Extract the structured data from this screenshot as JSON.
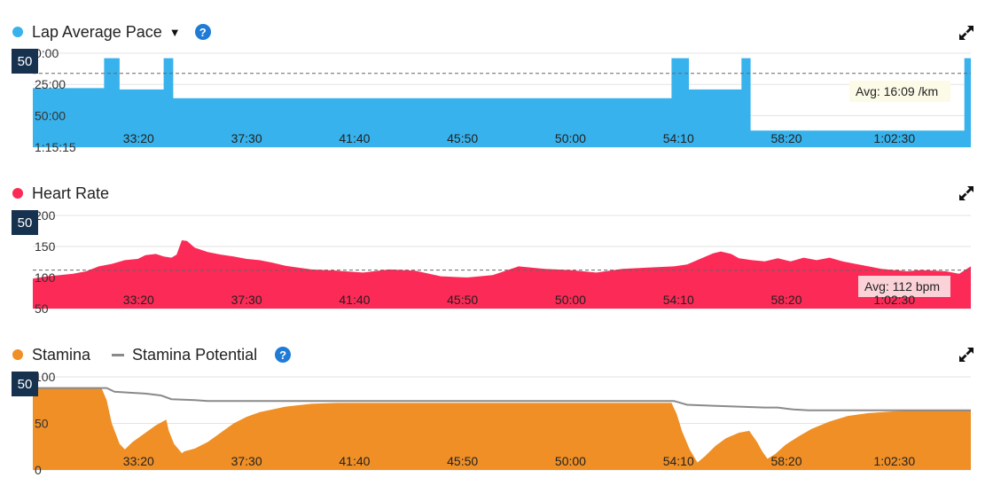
{
  "colors": {
    "pace": "#38b2ec",
    "heart": "#fb2a56",
    "stamina": "#ef8f26",
    "potential": "#8a8a8a",
    "help": "#1f7bd6",
    "badge": "#17324f"
  },
  "icons": {
    "help": "help-circle-icon",
    "expand": "expand-arrows-icon",
    "dropdown": "caret-down-icon"
  },
  "panels": [
    {
      "title": "Lap Average Pace",
      "badge": "50",
      "avg_label": "Avg: 16:09 /km",
      "help": "?",
      "caret": "▼"
    },
    {
      "title": "Heart Rate",
      "badge": "50",
      "avg_label": "Avg: 112 bpm"
    },
    {
      "title": "Stamina",
      "title2": "Stamina Potential",
      "badge": "50",
      "help": "?"
    }
  ],
  "chart_data": [
    {
      "type": "area",
      "title": "Lap Average Pace",
      "y_tick_labels": [
        "0:00",
        "25:00",
        "50:00",
        "1:15:15"
      ],
      "y_tick_values": [
        0,
        25,
        50,
        75.25
      ],
      "x_tick_labels": [
        "33:20",
        "37:30",
        "41:40",
        "45:50",
        "50:00",
        "54:10",
        "58:20",
        "1:02:30"
      ],
      "x_tick_minutes": [
        33.333,
        37.5,
        41.667,
        45.833,
        50.0,
        54.167,
        58.333,
        62.5
      ],
      "xlim_minutes": [
        29.25,
        65.45
      ],
      "ylim_minutes_per_km": [
        0,
        75.25
      ],
      "y_inverted": true,
      "average_minutes_per_km": 16.15,
      "series": [
        {
          "name": "Lap Average Pace",
          "x": [
            29.25,
            32.0,
            32.0,
            32.6,
            32.6,
            34.3,
            34.3,
            34.67,
            34.67,
            53.9,
            53.9,
            54.57,
            54.57,
            56.6,
            56.6,
            56.95,
            56.95,
            65.2,
            65.2,
            65.45
          ],
          "y": [
            28,
            28,
            4,
            4,
            29,
            29,
            4,
            4,
            36,
            36,
            4,
            4,
            29,
            29,
            4,
            4,
            62,
            62,
            4,
            4
          ]
        }
      ]
    },
    {
      "type": "area",
      "title": "Heart Rate",
      "y_tick_labels": [
        "200",
        "150",
        "100",
        "50"
      ],
      "y_tick_values": [
        200,
        150,
        100,
        50
      ],
      "x_tick_labels": [
        "33:20",
        "37:30",
        "41:40",
        "45:50",
        "50:00",
        "54:10",
        "58:20",
        "1:02:30"
      ],
      "x_tick_minutes": [
        33.333,
        37.5,
        41.667,
        45.833,
        50.0,
        54.167,
        58.333,
        62.5
      ],
      "xlim_minutes": [
        29.25,
        65.45
      ],
      "ylim": [
        50,
        200
      ],
      "average": 112,
      "series": [
        {
          "name": "Heart Rate",
          "x": [
            29.25,
            29.8,
            30.3,
            30.8,
            31.3,
            31.8,
            32.3,
            32.8,
            33.3,
            33.6,
            34.0,
            34.3,
            34.6,
            34.8,
            35.0,
            35.2,
            35.5,
            36.0,
            36.5,
            37.0,
            37.5,
            38.0,
            38.5,
            39.0,
            40.0,
            41.0,
            42.0,
            43.0,
            44.0,
            45.0,
            46.0,
            47.0,
            48.0,
            49.0,
            50.0,
            51.0,
            52.0,
            53.0,
            54.0,
            54.5,
            55.0,
            55.5,
            55.8,
            56.2,
            56.5,
            57.0,
            57.5,
            58.0,
            58.5,
            59.0,
            59.5,
            60.0,
            60.5,
            61.0,
            61.5,
            62.0,
            62.5,
            63.0,
            63.5,
            64.0,
            64.5,
            65.0,
            65.45
          ],
          "y": [
            98,
            102,
            104,
            106,
            110,
            118,
            122,
            128,
            130,
            136,
            138,
            134,
            132,
            137,
            160,
            159,
            148,
            141,
            137,
            134,
            130,
            128,
            124,
            119,
            113,
            111,
            108,
            113,
            111,
            102,
            100,
            104,
            118,
            114,
            112,
            108,
            114,
            116,
            118,
            121,
            130,
            139,
            142,
            138,
            131,
            128,
            126,
            131,
            126,
            132,
            128,
            132,
            126,
            122,
            118,
            114,
            112,
            110,
            112,
            111,
            110,
            106,
            118
          ]
        }
      ]
    },
    {
      "type": "area",
      "title": "Stamina",
      "y_tick_labels": [
        "100",
        "50",
        "0"
      ],
      "y_tick_values": [
        100,
        50,
        0
      ],
      "x_tick_labels": [
        "33:20",
        "37:30",
        "41:40",
        "45:50",
        "50:00",
        "54:10",
        "58:20",
        "1:02:30"
      ],
      "x_tick_minutes": [
        33.333,
        37.5,
        41.667,
        45.833,
        50.0,
        54.167,
        58.333,
        62.5
      ],
      "xlim_minutes": [
        29.25,
        65.45
      ],
      "ylim": [
        0,
        100
      ],
      "legend": [
        "Stamina",
        "Stamina Potential"
      ],
      "series": [
        {
          "name": "Stamina",
          "x": [
            29.25,
            31.9,
            32.1,
            32.3,
            32.6,
            32.8,
            33.1,
            33.5,
            34.0,
            34.4,
            34.5,
            34.7,
            35.0,
            35.1,
            35.5,
            36.0,
            36.5,
            37.0,
            37.5,
            38.0,
            39.0,
            40.0,
            41.0,
            42.0,
            43.0,
            50.0,
            53.0,
            53.9,
            54.1,
            54.3,
            54.6,
            54.9,
            55.2,
            55.6,
            56.0,
            56.5,
            56.9,
            57.0,
            57.2,
            57.4,
            57.6,
            57.9,
            58.3,
            58.8,
            59.3,
            60.0,
            60.7,
            61.5,
            62.5,
            63.5,
            65.45
          ],
          "y": [
            88,
            88,
            75,
            50,
            28,
            22,
            30,
            38,
            48,
            54,
            42,
            28,
            18,
            20,
            23,
            30,
            40,
            50,
            57,
            62,
            68,
            71,
            72,
            72,
            72,
            72,
            72,
            72,
            60,
            42,
            22,
            8,
            15,
            26,
            34,
            40,
            42,
            38,
            30,
            20,
            12,
            17,
            27,
            36,
            44,
            52,
            58,
            61,
            63,
            64,
            64
          ]
        },
        {
          "name": "Stamina Potential",
          "x": [
            29.25,
            32.1,
            32.4,
            33.0,
            33.6,
            34.2,
            34.6,
            35.5,
            36.0,
            50.0,
            53.0,
            54.0,
            54.5,
            55.5,
            56.5,
            57.5,
            58.0,
            58.6,
            59.2,
            60.0,
            62.0,
            65.45
          ],
          "y": [
            88,
            88,
            84,
            83,
            82,
            80,
            76,
            75,
            74,
            74,
            74,
            74,
            70,
            69,
            68,
            67,
            67,
            65,
            64,
            64,
            64,
            64
          ]
        }
      ]
    }
  ]
}
